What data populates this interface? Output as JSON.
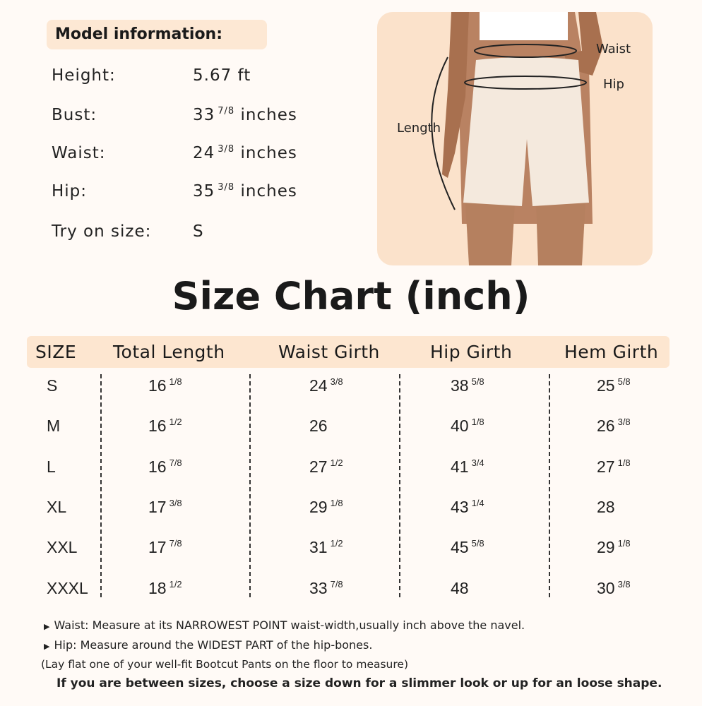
{
  "model_info": {
    "title": "Model information:",
    "rows": [
      {
        "label": "Height:",
        "value": "5.67 ft",
        "frac": "",
        "unit": ""
      },
      {
        "label": "Bust:",
        "value": "33",
        "frac": "7/8",
        "unit": "inches"
      },
      {
        "label": "Waist:",
        "value": "24",
        "frac": "3/8",
        "unit": "inches"
      },
      {
        "label": "Hip:",
        "value": "35",
        "frac": "3/8",
        "unit": "inches"
      },
      {
        "label": "Try on size:",
        "value": "S",
        "frac": "",
        "unit": ""
      }
    ]
  },
  "photo": {
    "labels": {
      "waist": "Waist",
      "hip": "Hip",
      "length": "Length"
    },
    "panel_color": "#fbe2cb"
  },
  "chart_title": "Size Chart (inch)",
  "table": {
    "headers": [
      "SIZE",
      "Total Length",
      "Waist Girth",
      "Hip Girth",
      "Hem Girth"
    ],
    "rows": [
      [
        [
          "S",
          ""
        ],
        [
          "16",
          "1/8"
        ],
        [
          "24",
          "3/8"
        ],
        [
          "38",
          "5/8"
        ],
        [
          "25",
          "5/8"
        ]
      ],
      [
        [
          "M",
          ""
        ],
        [
          "16",
          "1/2"
        ],
        [
          "26",
          ""
        ],
        [
          "40",
          "1/8"
        ],
        [
          "26",
          "3/8"
        ]
      ],
      [
        [
          "L",
          ""
        ],
        [
          "16",
          "7/8"
        ],
        [
          "27",
          "1/2"
        ],
        [
          "41",
          "3/4"
        ],
        [
          "27",
          "1/8"
        ]
      ],
      [
        [
          "XL",
          ""
        ],
        [
          "17",
          "3/8"
        ],
        [
          "29",
          "1/8"
        ],
        [
          "43",
          "1/4"
        ],
        [
          "28",
          ""
        ]
      ],
      [
        [
          "XXL",
          ""
        ],
        [
          "17",
          "7/8"
        ],
        [
          "31",
          "1/2"
        ],
        [
          "45",
          "5/8"
        ],
        [
          "29",
          "1/8"
        ]
      ],
      [
        [
          "XXXL",
          ""
        ],
        [
          "18",
          "1/2"
        ],
        [
          "33",
          "7/8"
        ],
        [
          "48",
          ""
        ],
        [
          "30",
          "3/8"
        ]
      ]
    ],
    "header_color": "#fde6d0"
  },
  "notes": {
    "bullet": "▶",
    "waist": "Waist: Measure at its NARROWEST POINT waist-width,usually inch above the navel.",
    "hip": "Hip: Measure around the WIDEST PART of the hip-bones.",
    "lay_flat": "(Lay flat one of your well-fit Bootcut Pants on the floor to measure)",
    "advice": "If you are between sizes, choose a size down for a slimmer look or up for an loose shape."
  }
}
